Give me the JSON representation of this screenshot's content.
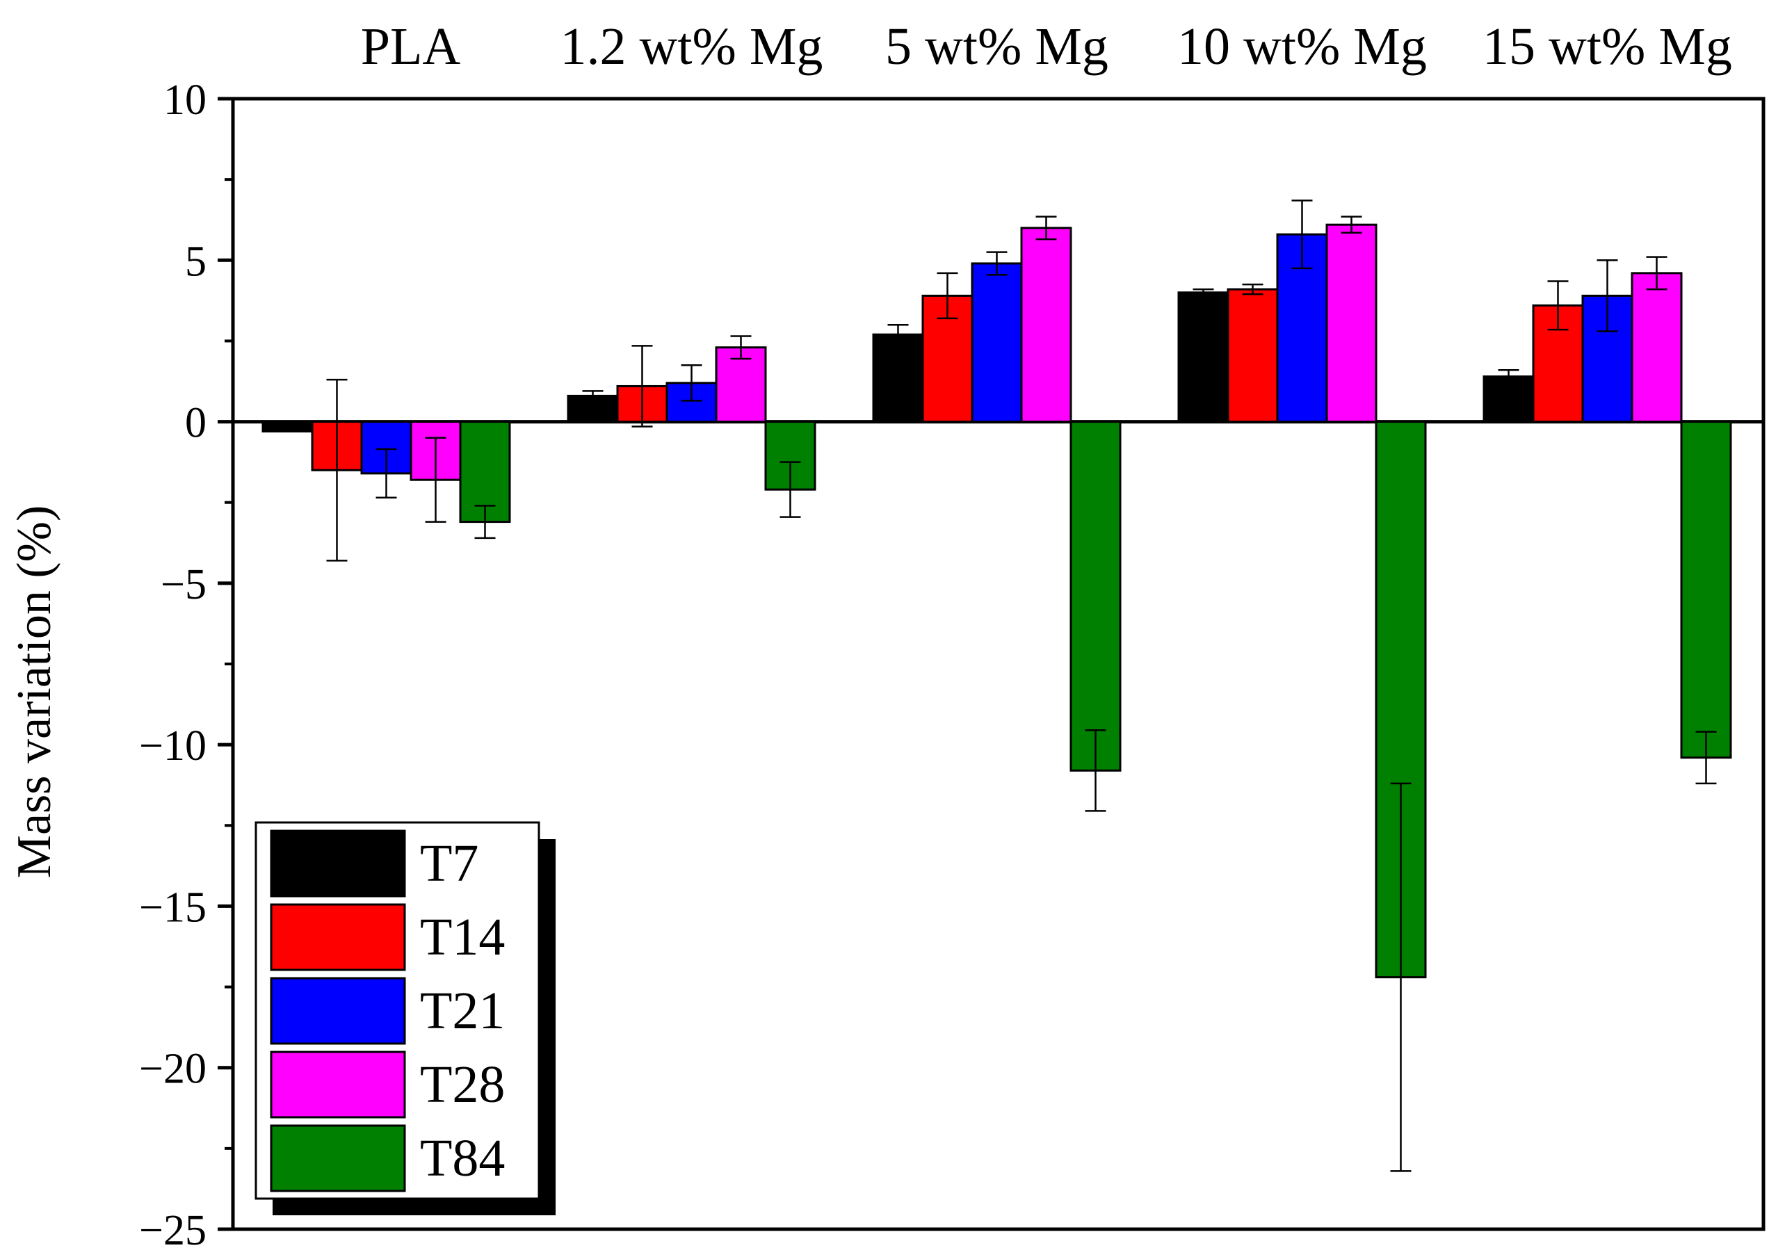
{
  "chart_data": {
    "type": "bar",
    "title": "",
    "xlabel": "",
    "ylabel": "Mass variation (%)",
    "ylim": [
      -25,
      10
    ],
    "yticks": [
      10,
      5,
      0,
      -5,
      -10,
      -15,
      -20,
      -25
    ],
    "ytick_labels": [
      "10",
      "5",
      "0",
      "−5",
      "−10",
      "−15",
      "−20",
      "−25"
    ],
    "grid": false,
    "legend_position": "bottom-left",
    "categories": [
      "PLA",
      "1.2 wt% Mg",
      "5 wt% Mg",
      "10 wt% Mg",
      "15 wt% Mg"
    ],
    "series": [
      {
        "name": "T7",
        "color": "#000000",
        "values": [
          -0.3,
          0.8,
          2.7,
          4.0,
          1.4
        ],
        "errors": [
          0.0,
          0.15,
          0.3,
          0.1,
          0.2
        ]
      },
      {
        "name": "T14",
        "color": "#ff0000",
        "values": [
          -1.5,
          1.1,
          3.9,
          4.1,
          3.6
        ],
        "errors": [
          2.8,
          1.25,
          0.7,
          0.15,
          0.75
        ]
      },
      {
        "name": "T21",
        "color": "#0000ff",
        "values": [
          -1.6,
          1.2,
          4.9,
          5.8,
          3.9
        ],
        "errors": [
          0.75,
          0.55,
          0.35,
          1.05,
          1.1
        ]
      },
      {
        "name": "T28",
        "color": "#ff00ff",
        "values": [
          -1.8,
          2.3,
          6.0,
          6.1,
          4.6
        ],
        "errors": [
          1.3,
          0.35,
          0.35,
          0.25,
          0.5
        ]
      },
      {
        "name": "T84",
        "color": "#008000",
        "values": [
          -3.1,
          -2.1,
          -10.8,
          -17.2,
          -10.4
        ],
        "errors": [
          0.5,
          0.85,
          1.25,
          6.0,
          0.8
        ]
      }
    ]
  }
}
